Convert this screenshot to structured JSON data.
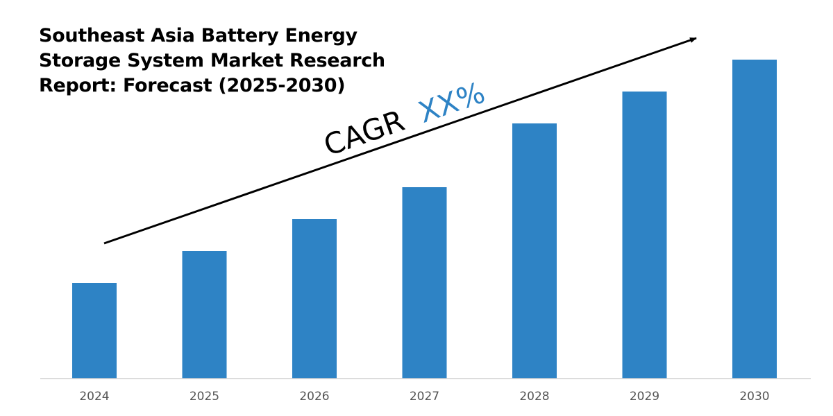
{
  "chart_data": {
    "type": "bar",
    "title": "Southeast Asia Battery Energy Storage System Market Research Report: Forecast (2025-2030)",
    "title_lines": [
      "Southeast Asia Battery Energy",
      "Storage System Market Research",
      "Report: Forecast (2025-2030)"
    ],
    "categories": [
      "2024",
      "2025",
      "2026",
      "2027",
      "2028",
      "2029",
      "2030"
    ],
    "values": [
      30,
      40,
      50,
      60,
      80,
      90,
      100
    ],
    "ylim": [
      0,
      100
    ],
    "xlabel": "",
    "ylabel": "",
    "grid": false,
    "annotation": {
      "prefix": "CAGR",
      "value": "XX%"
    },
    "colors": {
      "bar": "#2e83c5",
      "annotation_value": "#2e83c5",
      "axis": "#d0d0d0",
      "tick_label": "#555555",
      "arrow": "#000000"
    }
  }
}
